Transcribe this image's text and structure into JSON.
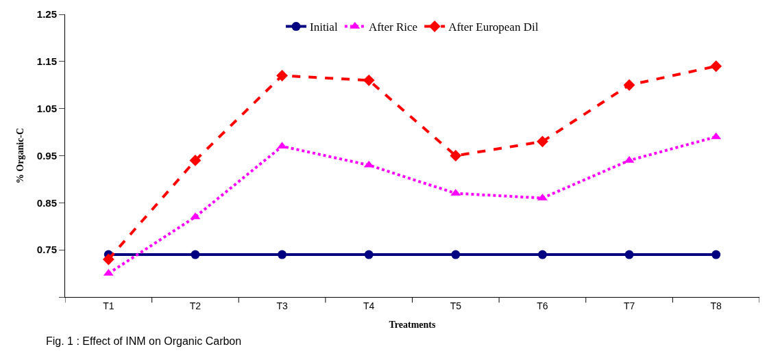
{
  "chart_data": {
    "type": "line",
    "xlabel": "Treatments",
    "ylabel": "% Organic-C",
    "categories": [
      "T1",
      "T2",
      "T3",
      "T4",
      "T5",
      "T6",
      "T7",
      "T8"
    ],
    "series": [
      {
        "name": "Initial",
        "color": "#000080",
        "marker": "circle",
        "line_style": "solid",
        "values": [
          0.74,
          0.74,
          0.74,
          0.74,
          0.74,
          0.74,
          0.74,
          0.74
        ]
      },
      {
        "name": "After Rice",
        "color": "#ff00ff",
        "marker": "triangle",
        "line_style": "dotted",
        "values": [
          0.7,
          0.82,
          0.97,
          0.93,
          0.87,
          0.86,
          0.94,
          0.99
        ]
      },
      {
        "name": "After European Dil",
        "color": "#ff0000",
        "marker": "diamond",
        "line_style": "dashed",
        "values": [
          0.73,
          0.94,
          1.12,
          1.11,
          0.95,
          0.98,
          1.1,
          1.14
        ]
      }
    ],
    "ylim": [
      0.65,
      1.25
    ],
    "yticks": [
      {
        "value": 0.65,
        "label": null
      },
      0.75,
      0.85,
      0.95,
      1.05,
      1.15,
      1.25
    ],
    "legend": "top",
    "annotations": [
      "Fig. 1 : Effect of INM on Organic Carbon"
    ]
  }
}
